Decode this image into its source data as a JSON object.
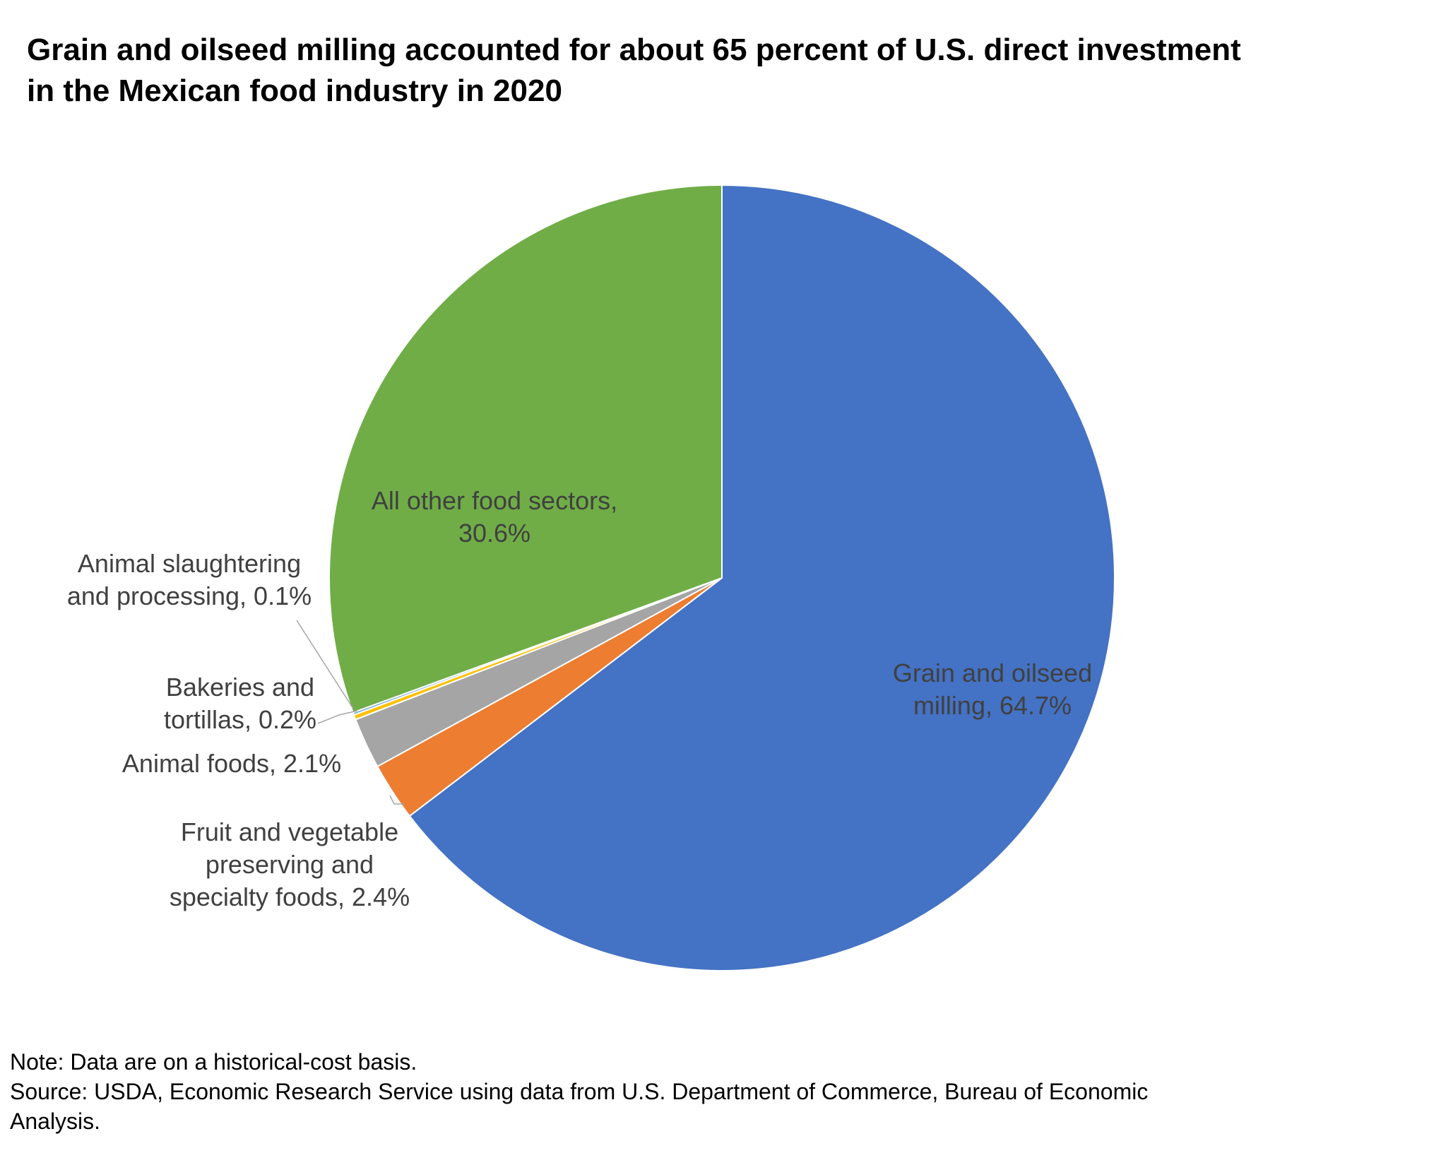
{
  "title_lines": [
    "Grain and oilseed milling accounted for about 65 percent of U.S. direct investment",
    "in the Mexican food industry in 2020"
  ],
  "chart_data": {
    "type": "pie",
    "start_angle_deg": 0,
    "direction": "clockwise",
    "slices": [
      {
        "name": "Grain and oilseed milling",
        "value": 64.7,
        "color": "#4472C4",
        "label_lines": [
          "Grain and oilseed",
          "milling, 64.7%"
        ]
      },
      {
        "name": "Fruit and vegetable preserving and specialty foods",
        "value": 2.4,
        "color": "#ED7D31",
        "label_lines": [
          "Fruit and vegetable",
          "preserving and",
          "specialty foods, 2.4%"
        ]
      },
      {
        "name": "Animal foods",
        "value": 2.1,
        "color": "#A5A5A5",
        "label_lines": [
          "Animal foods, 2.1%"
        ]
      },
      {
        "name": "Bakeries and tortillas",
        "value": 0.2,
        "color": "#FFC000",
        "label_lines": [
          "Bakeries and",
          "tortillas, 0.2%"
        ]
      },
      {
        "name": "Animal slaughtering and processing",
        "value": 0.1,
        "color": "#5B9BD5",
        "label_lines": [
          "Animal slaughtering",
          "and processing, 0.1%"
        ]
      },
      {
        "name": "All other food sectors",
        "value": 30.6,
        "color": "#70AD47",
        "label_lines": [
          "All other food sectors,",
          "30.6%"
        ]
      }
    ],
    "leader_color": "#A6A6A6"
  },
  "footer": {
    "note": "Note: Data are on a historical-cost basis.",
    "source_lines": [
      "Source: USDA, Economic Research Service using data from U.S. Department of Commerce, Bureau of Economic",
      "Analysis."
    ]
  }
}
